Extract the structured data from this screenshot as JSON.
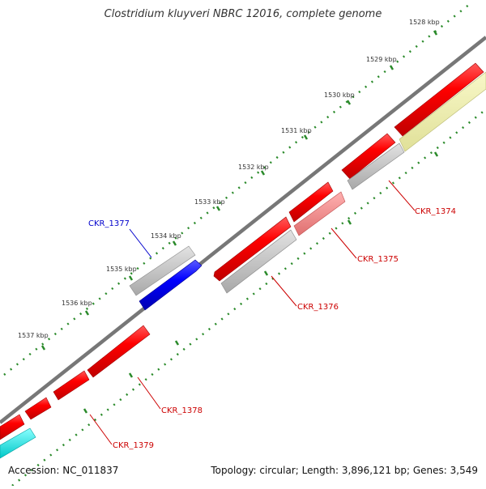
{
  "title": "Clostridium kluyveri NBRC 12016, complete genome",
  "footer": {
    "accession": "Accession: NC_011837",
    "stats": "Topology: circular; Length: 3,896,121 bp; Genes: 3,549"
  },
  "scale_labels": [
    "1528 kbp",
    "1529 kbp",
    "1530 kbp",
    "1531 kbp",
    "1532 kbp",
    "1533 kbp",
    "1534 kbp",
    "1535 kbp",
    "1536 kbp",
    "1537 kbp"
  ],
  "gene_labels": [
    {
      "id": "CKR_1374",
      "color": "#cc0000"
    },
    {
      "id": "CKR_1375",
      "color": "#cc0000"
    },
    {
      "id": "CKR_1376",
      "color": "#cc0000"
    },
    {
      "id": "CKR_1377",
      "color": "#0000cc"
    },
    {
      "id": "CKR_1378",
      "color": "#cc0000"
    },
    {
      "id": "CKR_1379",
      "color": "#cc0000"
    }
  ],
  "colors": {
    "cds": "#ee0000",
    "cds_light": "#f08080",
    "rna_gray": "#bfbfbf",
    "blue": "#0000ee",
    "cyan": "#00e5e5",
    "pale_yellow": "#eeeeaa",
    "backbone": "#777777",
    "ticks": "#2a8a2a"
  }
}
